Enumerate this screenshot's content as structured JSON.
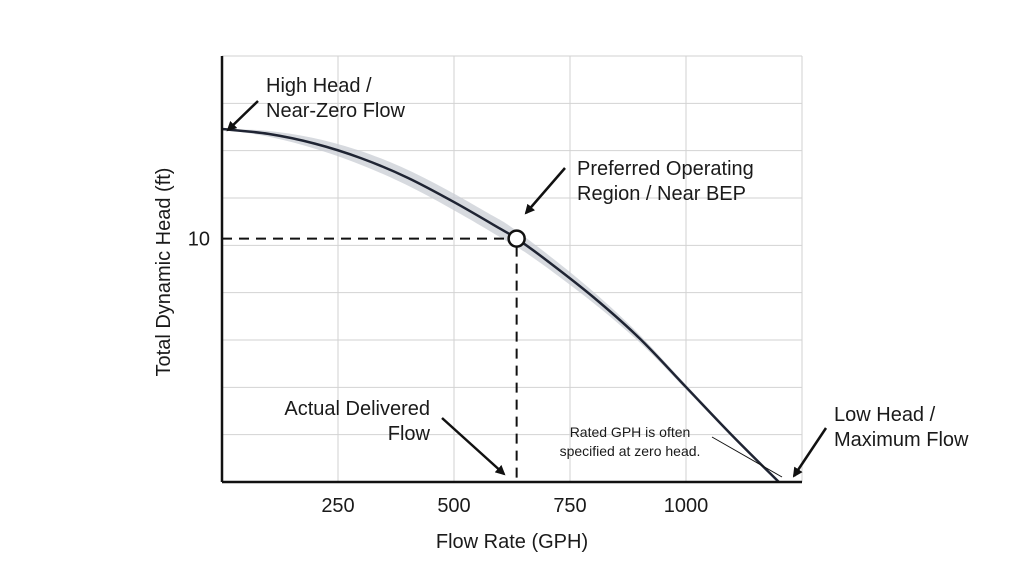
{
  "chart_data": {
    "type": "line",
    "xlabel": "Flow Rate (GPH)",
    "ylabel": "Total Dynamic Head (ft)",
    "xticks": [
      250,
      500,
      750,
      1000
    ],
    "yticks": [
      10
    ],
    "xlim": [
      0,
      1250
    ],
    "ylim": [
      0,
      17.5
    ],
    "grid": true,
    "series": [
      {
        "x": [
          0,
          100,
          200,
          300,
          400,
          500,
          600,
          635,
          700,
          800,
          900,
          1000,
          1100,
          1200
        ],
        "y": [
          14.5,
          14.3,
          13.9,
          13.3,
          12.5,
          11.5,
          10.4,
          10.0,
          9.1,
          7.6,
          5.9,
          3.9,
          1.9,
          0
        ]
      }
    ],
    "operating_point": {
      "x": 635,
      "y": 10
    },
    "annotations": {
      "high_head": [
        "High Head /",
        "Near-Zero Flow"
      ],
      "preferred": [
        "Preferred Operating",
        "Region / Near BEP"
      ],
      "actual": [
        "Actual Delivered",
        "Flow"
      ],
      "rated_note": [
        "Rated GPH is often",
        "specified at zero head."
      ],
      "low_head": [
        "Low Head /",
        "Maximum Flow"
      ]
    }
  }
}
